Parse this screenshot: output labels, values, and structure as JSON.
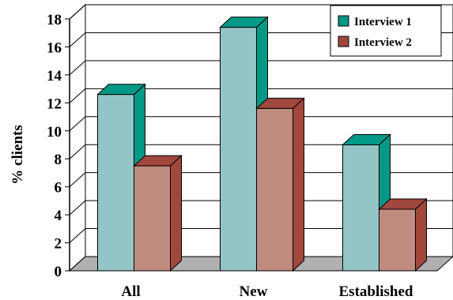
{
  "chart_data": {
    "type": "bar",
    "style": "3d-clustered-column",
    "categories": [
      "All",
      "New",
      "Established"
    ],
    "series": [
      {
        "name": "Interview 1",
        "values": [
          12.6,
          17.4,
          9.0
        ],
        "colors": {
          "front": "#93c5c6",
          "side": "#009985",
          "top": "#009985"
        }
      },
      {
        "name": "Interview 2",
        "values": [
          7.5,
          11.6,
          4.4
        ],
        "colors": {
          "front": "#c08c80",
          "side": "#a0473e",
          "top": "#a0473e"
        }
      }
    ],
    "ylabel": "% clients",
    "xlabel": "",
    "title": "",
    "ylim": [
      0,
      18
    ],
    "yticks": [
      0,
      2,
      4,
      6,
      8,
      10,
      12,
      14,
      16,
      18
    ],
    "grid": true,
    "legend_position": "top-right"
  }
}
